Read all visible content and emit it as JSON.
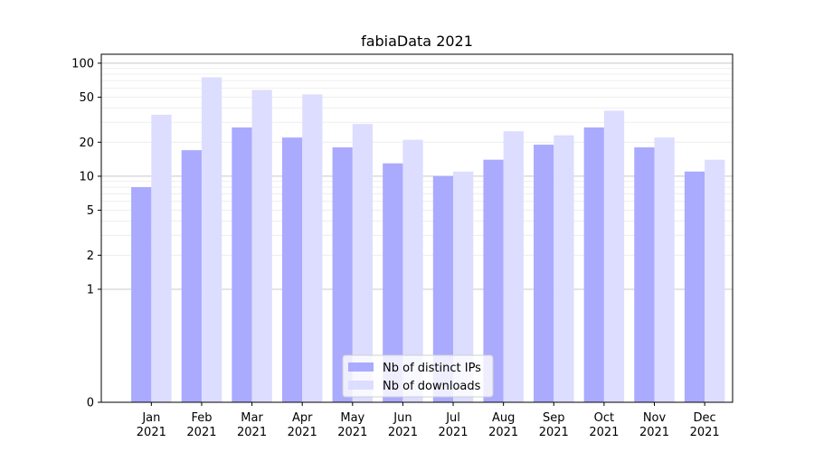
{
  "chart_data": {
    "type": "bar",
    "title": "fabiaData 2021",
    "categories": [
      [
        "Jan",
        "2021"
      ],
      [
        "Feb",
        "2021"
      ],
      [
        "Mar",
        "2021"
      ],
      [
        "Apr",
        "2021"
      ],
      [
        "May",
        "2021"
      ],
      [
        "Jun",
        "2021"
      ],
      [
        "Jul",
        "2021"
      ],
      [
        "Aug",
        "2021"
      ],
      [
        "Sep",
        "2021"
      ],
      [
        "Oct",
        "2021"
      ],
      [
        "Nov",
        "2021"
      ],
      [
        "Dec",
        "2021"
      ]
    ],
    "series": [
      {
        "name": "Nb of distinct IPs",
        "color": "#aaaaff",
        "values": [
          8,
          17,
          27,
          22,
          18,
          13,
          10,
          14,
          19,
          27,
          18,
          11
        ]
      },
      {
        "name": "Nb of downloads",
        "color": "#ddddff",
        "values": [
          35,
          75,
          58,
          53,
          29,
          21,
          11,
          25,
          23,
          38,
          22,
          14
        ]
      }
    ],
    "yscale": "symlog",
    "ylim": [
      0,
      120
    ],
    "yticks": [
      {
        "value": 0,
        "label": "0"
      },
      {
        "value": 1,
        "label": "1"
      },
      {
        "value": 2,
        "label": "2"
      },
      {
        "value": 5,
        "label": "5"
      },
      {
        "value": 10,
        "label": "10"
      },
      {
        "value": 20,
        "label": "20"
      },
      {
        "value": 50,
        "label": "50"
      },
      {
        "value": 100,
        "label": "100"
      }
    ],
    "grid": true,
    "legend_position": "lower-center"
  }
}
